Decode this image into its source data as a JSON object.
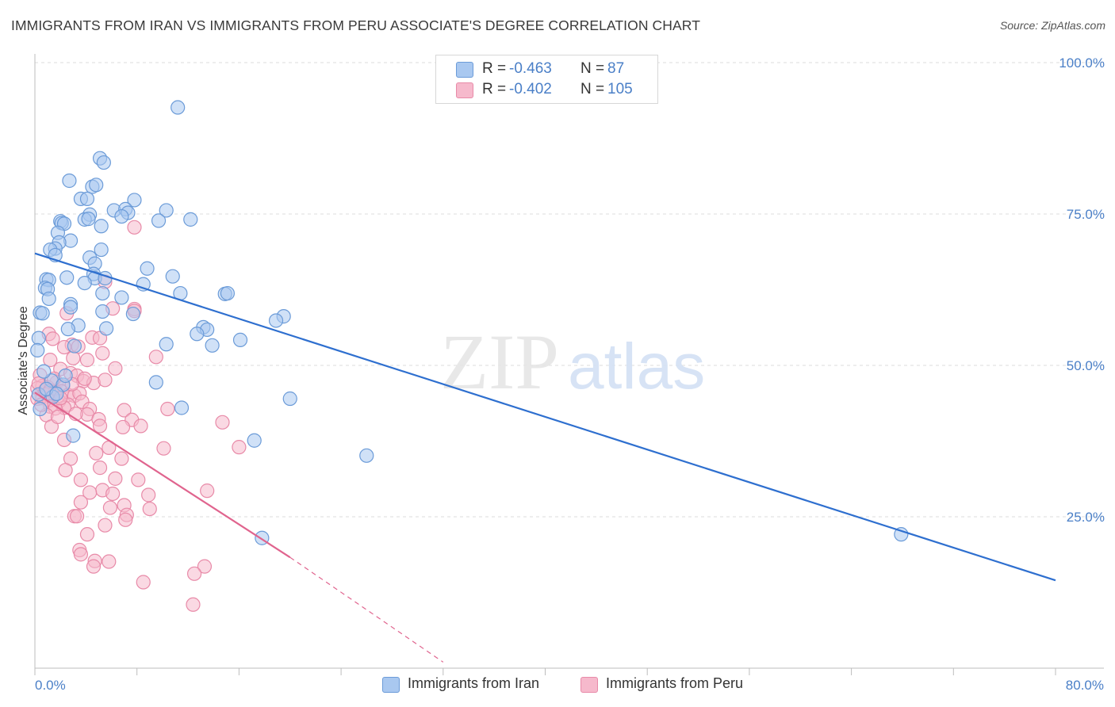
{
  "header": {
    "title": "IMMIGRANTS FROM IRAN VS IMMIGRANTS FROM PERU ASSOCIATE'S DEGREE CORRELATION CHART",
    "source": "Source: ZipAtlas.com"
  },
  "watermark": {
    "zip": "ZIP",
    "atlas": "atlas"
  },
  "legend_top": {
    "rows": [
      {
        "r_label": "R =",
        "r_value": "-0.463",
        "n_label": "N =",
        "n_value": "87"
      },
      {
        "r_label": "R =",
        "r_value": "-0.402",
        "n_label": "N =",
        "n_value": "105"
      }
    ]
  },
  "legend_bottom": {
    "items": [
      {
        "label": "Immigrants from Iran"
      },
      {
        "label": "Immigrants from Peru"
      }
    ]
  },
  "colors": {
    "iran_fill": "#a9c8f0",
    "iran_stroke": "#6b9bd8",
    "iran_line": "#2e6fcf",
    "peru_fill": "#f6b9cc",
    "peru_stroke": "#e88aa8",
    "peru_line": "#e0648e",
    "grid": "#dedede",
    "tick_label": "#4a7fc7"
  },
  "chart_data": {
    "type": "scatter",
    "title": "IMMIGRANTS FROM IRAN VS IMMIGRANTS FROM PERU ASSOCIATE'S DEGREE CORRELATION CHART",
    "xlabel": "",
    "ylabel": "Associate's Degree",
    "xlim": [
      0,
      80
    ],
    "ylim": [
      0,
      100
    ],
    "x_tick_labels": [
      "0.0%",
      "80.0%"
    ],
    "y_ticks": [
      {
        "value": 100,
        "label": "100.0%"
      },
      {
        "value": 75,
        "label": "75.0%"
      },
      {
        "value": 50,
        "label": "50.0%"
      },
      {
        "value": 25,
        "label": "25.0%"
      }
    ],
    "series": [
      {
        "name": "Immigrants from Iran",
        "R": -0.463,
        "N": 87,
        "trend": {
          "x": [
            0,
            80
          ],
          "y": [
            68.5,
            14.5
          ]
        },
        "points": [
          [
            11.2,
            92.6
          ],
          [
            5.1,
            84.2
          ],
          [
            5.4,
            83.5
          ],
          [
            2.7,
            80.5
          ],
          [
            4.5,
            79.5
          ],
          [
            4.8,
            79.8
          ],
          [
            3.6,
            77.5
          ],
          [
            4.1,
            77.5
          ],
          [
            7.8,
            77.3
          ],
          [
            6.2,
            75.6
          ],
          [
            7.1,
            75.8
          ],
          [
            7.3,
            75.2
          ],
          [
            6.8,
            74.6
          ],
          [
            10.3,
            75.6
          ],
          [
            4.3,
            74.9
          ],
          [
            3.9,
            74.1
          ],
          [
            4.2,
            74.2
          ],
          [
            2.0,
            73.8
          ],
          [
            2.1,
            73.5
          ],
          [
            2.3,
            73.4
          ],
          [
            5.2,
            73.0
          ],
          [
            9.7,
            73.9
          ],
          [
            12.2,
            74.1
          ],
          [
            1.8,
            71.9
          ],
          [
            2.8,
            70.6
          ],
          [
            1.9,
            70.3
          ],
          [
            1.6,
            69.3
          ],
          [
            1.2,
            69.1
          ],
          [
            5.2,
            69.1
          ],
          [
            1.6,
            68.2
          ],
          [
            4.3,
            67.8
          ],
          [
            4.7,
            66.8
          ],
          [
            8.8,
            66.0
          ],
          [
            4.6,
            65.1
          ],
          [
            0.9,
            64.2
          ],
          [
            1.1,
            64.1
          ],
          [
            2.5,
            64.5
          ],
          [
            4.7,
            64.4
          ],
          [
            3.9,
            63.6
          ],
          [
            5.5,
            64.4
          ],
          [
            8.5,
            63.4
          ],
          [
            10.8,
            64.7
          ],
          [
            0.8,
            62.8
          ],
          [
            1.0,
            62.6
          ],
          [
            5.3,
            61.9
          ],
          [
            11.4,
            61.9
          ],
          [
            14.9,
            61.8
          ],
          [
            15.1,
            61.9
          ],
          [
            6.8,
            61.2
          ],
          [
            1.1,
            61.0
          ],
          [
            2.8,
            60.1
          ],
          [
            2.8,
            59.6
          ],
          [
            5.3,
            58.9
          ],
          [
            0.4,
            58.7
          ],
          [
            0.6,
            58.6
          ],
          [
            7.7,
            58.5
          ],
          [
            19.5,
            58.1
          ],
          [
            18.9,
            57.4
          ],
          [
            3.4,
            56.6
          ],
          [
            2.6,
            56.0
          ],
          [
            5.6,
            56.1
          ],
          [
            13.2,
            56.3
          ],
          [
            13.5,
            55.9
          ],
          [
            12.7,
            55.2
          ],
          [
            16.1,
            54.2
          ],
          [
            0.3,
            54.5
          ],
          [
            10.3,
            53.5
          ],
          [
            13.9,
            53.3
          ],
          [
            0.2,
            52.5
          ],
          [
            3.1,
            53.2
          ],
          [
            9.5,
            47.2
          ],
          [
            11.5,
            43.0
          ],
          [
            20.0,
            44.5
          ],
          [
            0.3,
            45.2
          ],
          [
            3.0,
            38.4
          ],
          [
            17.2,
            37.6
          ],
          [
            26.0,
            35.1
          ],
          [
            0.4,
            42.8
          ],
          [
            17.8,
            21.5
          ],
          [
            67.9,
            22.1
          ],
          [
            1.3,
            47.5
          ],
          [
            2.2,
            46.8
          ],
          [
            2.4,
            48.3
          ],
          [
            1.4,
            44.8
          ],
          [
            0.9,
            46.1
          ],
          [
            1.7,
            45.3
          ],
          [
            0.7,
            49.0
          ]
        ]
      },
      {
        "name": "Immigrants from Peru",
        "R": -0.402,
        "N": 105,
        "trend_solid": {
          "x": [
            0,
            20
          ],
          "y": [
            45.5,
            18.3
          ]
        },
        "trend_dashed": {
          "x": [
            20,
            32
          ],
          "y": [
            18.3,
            1.0
          ]
        },
        "points": [
          [
            7.8,
            72.8
          ],
          [
            5.5,
            63.8
          ],
          [
            7.8,
            59.3
          ],
          [
            6.1,
            59.4
          ],
          [
            7.8,
            59.0
          ],
          [
            2.5,
            58.6
          ],
          [
            1.1,
            55.2
          ],
          [
            4.5,
            54.6
          ],
          [
            1.4,
            54.4
          ],
          [
            5.1,
            54.5
          ],
          [
            2.9,
            53.4
          ],
          [
            3.4,
            53.1
          ],
          [
            2.3,
            53.0
          ],
          [
            5.3,
            52.0
          ],
          [
            9.5,
            51.4
          ],
          [
            4.1,
            50.9
          ],
          [
            3.0,
            51.2
          ],
          [
            1.2,
            50.9
          ],
          [
            6.3,
            49.5
          ],
          [
            2.0,
            49.4
          ],
          [
            2.8,
            48.7
          ],
          [
            0.4,
            48.4
          ],
          [
            3.3,
            48.3
          ],
          [
            3.8,
            47.4
          ],
          [
            4.6,
            47.1
          ],
          [
            5.5,
            47.6
          ],
          [
            1.7,
            47.2
          ],
          [
            3.9,
            47.8
          ],
          [
            0.6,
            46.6
          ],
          [
            2.2,
            46.5
          ],
          [
            0.2,
            46.2
          ],
          [
            1.0,
            46.4
          ],
          [
            1.3,
            45.9
          ],
          [
            1.6,
            45.7
          ],
          [
            2.1,
            45.7
          ],
          [
            2.6,
            45.1
          ],
          [
            3.1,
            45.0
          ],
          [
            3.5,
            45.4
          ],
          [
            0.9,
            45.2
          ],
          [
            1.4,
            44.8
          ],
          [
            0.6,
            44.6
          ],
          [
            0.2,
            44.5
          ],
          [
            1.1,
            44.2
          ],
          [
            1.9,
            44.1
          ],
          [
            2.6,
            43.5
          ],
          [
            3.7,
            44.0
          ],
          [
            1.2,
            43.2
          ],
          [
            2.3,
            43.0
          ],
          [
            1.6,
            42.9
          ],
          [
            4.3,
            42.8
          ],
          [
            7.0,
            42.6
          ],
          [
            10.4,
            42.8
          ],
          [
            4.1,
            41.9
          ],
          [
            0.9,
            41.8
          ],
          [
            5.0,
            41.1
          ],
          [
            7.6,
            41.0
          ],
          [
            14.7,
            40.6
          ],
          [
            5.1,
            40.0
          ],
          [
            8.3,
            40.0
          ],
          [
            1.3,
            39.9
          ],
          [
            6.9,
            39.8
          ],
          [
            2.3,
            37.7
          ],
          [
            10.1,
            36.3
          ],
          [
            5.8,
            36.4
          ],
          [
            16.0,
            36.5
          ],
          [
            4.8,
            35.5
          ],
          [
            2.8,
            34.6
          ],
          [
            6.8,
            34.6
          ],
          [
            5.1,
            33.1
          ],
          [
            2.4,
            32.7
          ],
          [
            6.3,
            31.3
          ],
          [
            8.1,
            31.1
          ],
          [
            3.6,
            31.1
          ],
          [
            8.9,
            28.6
          ],
          [
            5.3,
            29.4
          ],
          [
            13.5,
            29.3
          ],
          [
            4.3,
            29.0
          ],
          [
            6.1,
            28.8
          ],
          [
            3.6,
            27.4
          ],
          [
            7.0,
            26.9
          ],
          [
            5.9,
            26.5
          ],
          [
            9.0,
            26.3
          ],
          [
            3.1,
            25.1
          ],
          [
            3.3,
            25.1
          ],
          [
            7.2,
            25.3
          ],
          [
            7.1,
            24.5
          ],
          [
            5.5,
            23.6
          ],
          [
            4.1,
            22.1
          ],
          [
            3.5,
            19.5
          ],
          [
            3.6,
            18.8
          ],
          [
            4.7,
            17.7
          ],
          [
            5.8,
            17.6
          ],
          [
            4.6,
            16.8
          ],
          [
            13.3,
            16.8
          ],
          [
            12.5,
            15.6
          ],
          [
            8.5,
            14.2
          ],
          [
            12.4,
            10.5
          ],
          [
            1.8,
            41.5
          ],
          [
            0.5,
            43.5
          ],
          [
            2.9,
            46.9
          ],
          [
            1.5,
            47.8
          ],
          [
            0.8,
            45.9
          ],
          [
            2.0,
            44.6
          ],
          [
            3.2,
            42.0
          ],
          [
            0.3,
            47.0
          ]
        ]
      }
    ]
  }
}
